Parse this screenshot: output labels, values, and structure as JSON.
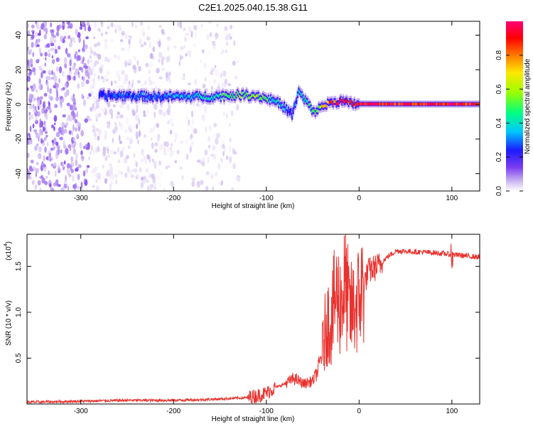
{
  "figure": {
    "title": "C2E1.2025.040.15.38.G11"
  },
  "chart_data": [
    {
      "type": "heatmap",
      "title": "C2E1.2025.040.15.38.G11",
      "xlabel": "Height of straight line (km)",
      "ylabel": "Frequency (Hz)",
      "xlim": [
        -358,
        130
      ],
      "ylim": [
        -50,
        48
      ],
      "xticks": [
        -300,
        -200,
        -100,
        0,
        100
      ],
      "yticks": [
        -40,
        -20,
        0,
        20,
        40
      ],
      "colorbar": {
        "label": "Normalized spectral amplitude",
        "range": [
          0.0,
          1.0
        ],
        "ticks": [
          0.0,
          0.2,
          0.4,
          0.6,
          0.8
        ],
        "colormap": [
          "#ffffff",
          "#d8c7f2",
          "#7b3cf0",
          "#0000ff",
          "#00bfff",
          "#00ff80",
          "#9aff00",
          "#ffe600",
          "#ff7a00",
          "#ff0000",
          "#ff0077"
        ]
      },
      "ridge": {
        "x": [
          -280,
          -250,
          -220,
          -190,
          -160,
          -130,
          -110,
          -90,
          -80,
          -72,
          -65,
          -60,
          -55,
          -50,
          -45,
          -40,
          -30,
          -20,
          -10,
          0,
          50,
          100,
          130
        ],
        "frequency": [
          5,
          5,
          4.5,
          4.5,
          4.5,
          5.5,
          5,
          2,
          -2,
          -6,
          8,
          3,
          1,
          -5,
          -3,
          -1,
          1,
          2,
          0.5,
          0.3,
          0.2,
          0.2,
          0.2
        ],
        "amplitude": [
          0.3,
          0.35,
          0.35,
          0.4,
          0.45,
          0.55,
          0.6,
          0.45,
          0.35,
          0.3,
          0.4,
          0.45,
          0.5,
          0.5,
          0.55,
          0.7,
          0.85,
          0.9,
          0.9,
          0.95,
          0.9,
          0.95,
          0.9
        ]
      }
    },
    {
      "type": "line",
      "xlabel": "Height of straight line (km)",
      "ylabel": "SNR (10 * v/v)",
      "y_multiplier_label": "(x10",
      "y_multiplier_exp": "4",
      "xlim": [
        -358,
        130
      ],
      "ylim": [
        0,
        1.85
      ],
      "xticks": [
        -300,
        -200,
        -100,
        0,
        100
      ],
      "yticks": [
        0.5,
        1.0,
        1.5
      ],
      "series": [
        {
          "color": "#e8322e",
          "x": [
            -358,
            -300,
            -250,
            -200,
            -160,
            -120,
            -110,
            -100,
            -90,
            -80,
            -70,
            -60,
            -50,
            -45,
            -40,
            -35,
            -30,
            -25,
            -20,
            -15,
            -10,
            -5,
            0,
            10,
            20,
            30,
            40,
            60,
            80,
            90,
            100,
            110,
            130
          ],
          "y": [
            0.02,
            0.03,
            0.04,
            0.04,
            0.05,
            0.07,
            0.09,
            0.12,
            0.18,
            0.22,
            0.28,
            0.22,
            0.25,
            0.35,
            0.55,
            0.9,
            0.9,
            1.2,
            1.1,
            1.3,
            1.0,
            1.05,
            1.15,
            1.45,
            1.5,
            1.6,
            1.67,
            1.66,
            1.65,
            1.64,
            1.63,
            1.62,
            1.6
          ]
        }
      ]
    }
  ]
}
